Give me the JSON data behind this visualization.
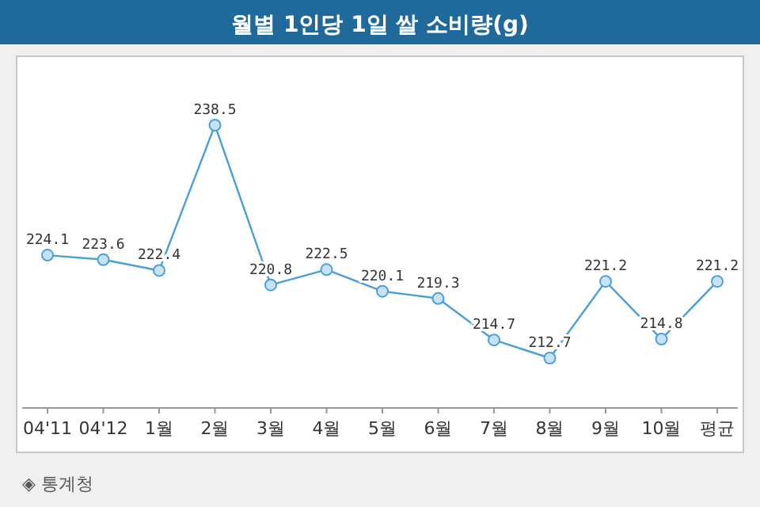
{
  "chart_data": {
    "type": "line",
    "title": "월별 1인당 1일 쌀 소비량(g)",
    "categories": [
      "04'11",
      "04'12",
      "1월",
      "2월",
      "3월",
      "4월",
      "5월",
      "6월",
      "7월",
      "8월",
      "9월",
      "10월",
      "평균"
    ],
    "values": [
      224.1,
      223.6,
      222.4,
      238.5,
      220.8,
      222.5,
      220.1,
      219.3,
      214.7,
      212.7,
      221.2,
      214.8,
      221.2
    ],
    "color": "#4a9fd8",
    "marker": "circle",
    "line_style": "solid",
    "data_labels": true,
    "annotations": [
      "◈ 통계청"
    ]
  }
}
